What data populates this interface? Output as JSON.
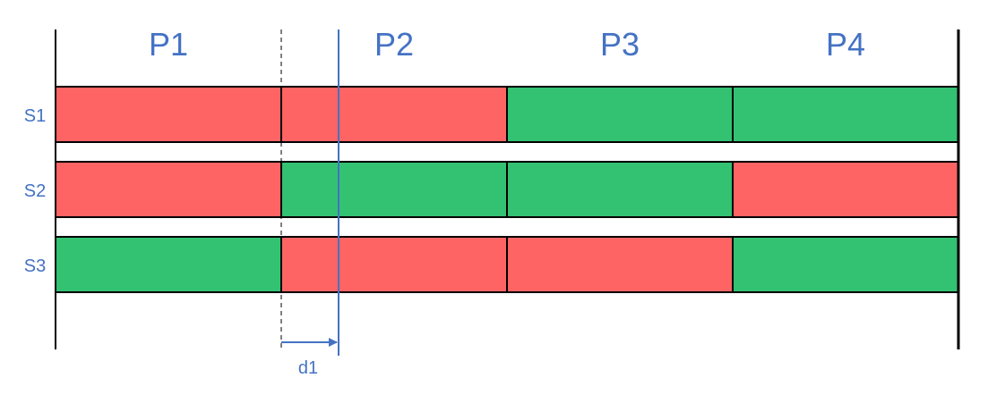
{
  "colors": {
    "red": "#FF6464",
    "green": "#33C172",
    "text": "#4472C4",
    "line": "#000000"
  },
  "periods": [
    {
      "label": "P1"
    },
    {
      "label": "P2"
    },
    {
      "label": "P3"
    },
    {
      "label": "P4"
    }
  ],
  "rows": [
    {
      "label": "S1",
      "states": [
        "red",
        "red",
        "green",
        "green"
      ]
    },
    {
      "label": "S2",
      "states": [
        "red",
        "green",
        "green",
        "red"
      ]
    },
    {
      "label": "S3",
      "states": [
        "green",
        "red",
        "red",
        "green"
      ]
    }
  ],
  "offset": {
    "label": "d1",
    "fraction_of_period": 0.25
  }
}
